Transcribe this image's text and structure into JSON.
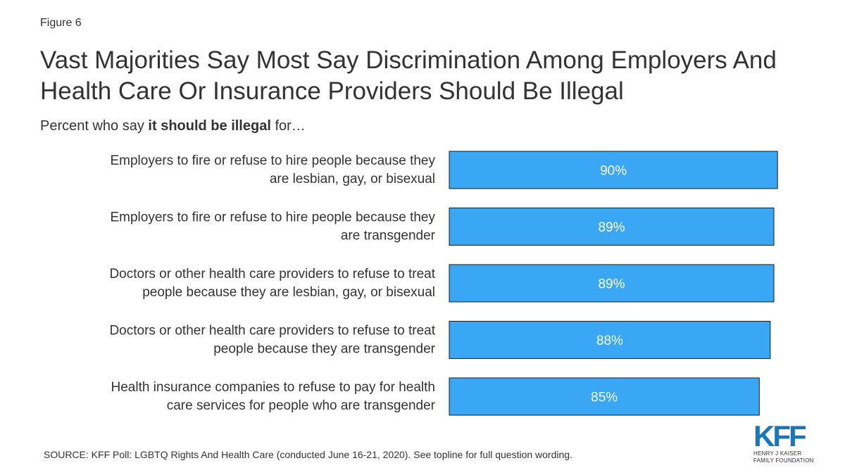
{
  "figure_label": "Figure 6",
  "title": "Vast Majorities Say Most Say Discrimination Among Employers And Health Care Or Insurance Providers Should Be Illegal",
  "subtitle": {
    "prefix": "Percent who say ",
    "bold": "it should be illegal",
    "suffix": " for…"
  },
  "source": "SOURCE: KFF Poll: LGBTQ Rights And Health Care (conducted June 16-21, 2020). See topline for full question wording.",
  "logo": {
    "mark": "KFF",
    "line1": "HENRY J KAISER",
    "line2": "FAMILY FOUNDATION"
  },
  "colors": {
    "bar": "#3aa7f5",
    "bar_border": "#1a1a1a",
    "text": "#333333",
    "logo": "#1a75bb"
  },
  "chart_data": {
    "type": "bar",
    "orientation": "horizontal",
    "categories": [
      [
        "Employers to fire or refuse to hire people because they",
        "are lesbian, gay, or bisexual"
      ],
      [
        "Employers to fire or refuse to hire people because they",
        "are transgender"
      ],
      [
        "Doctors or other health care providers to refuse to treat",
        "people because they are lesbian, gay, or bisexual"
      ],
      [
        "Doctors or other health care providers to refuse to treat",
        "people because they are transgender"
      ],
      [
        "Health insurance companies to refuse to pay for health",
        "care services for people who are transgender"
      ]
    ],
    "values": [
      90,
      89,
      89,
      88,
      85
    ],
    "value_labels": [
      "90%",
      "89%",
      "89%",
      "88%",
      "85%"
    ],
    "xlim": [
      0,
      100
    ],
    "grid": false,
    "legend": "none"
  }
}
